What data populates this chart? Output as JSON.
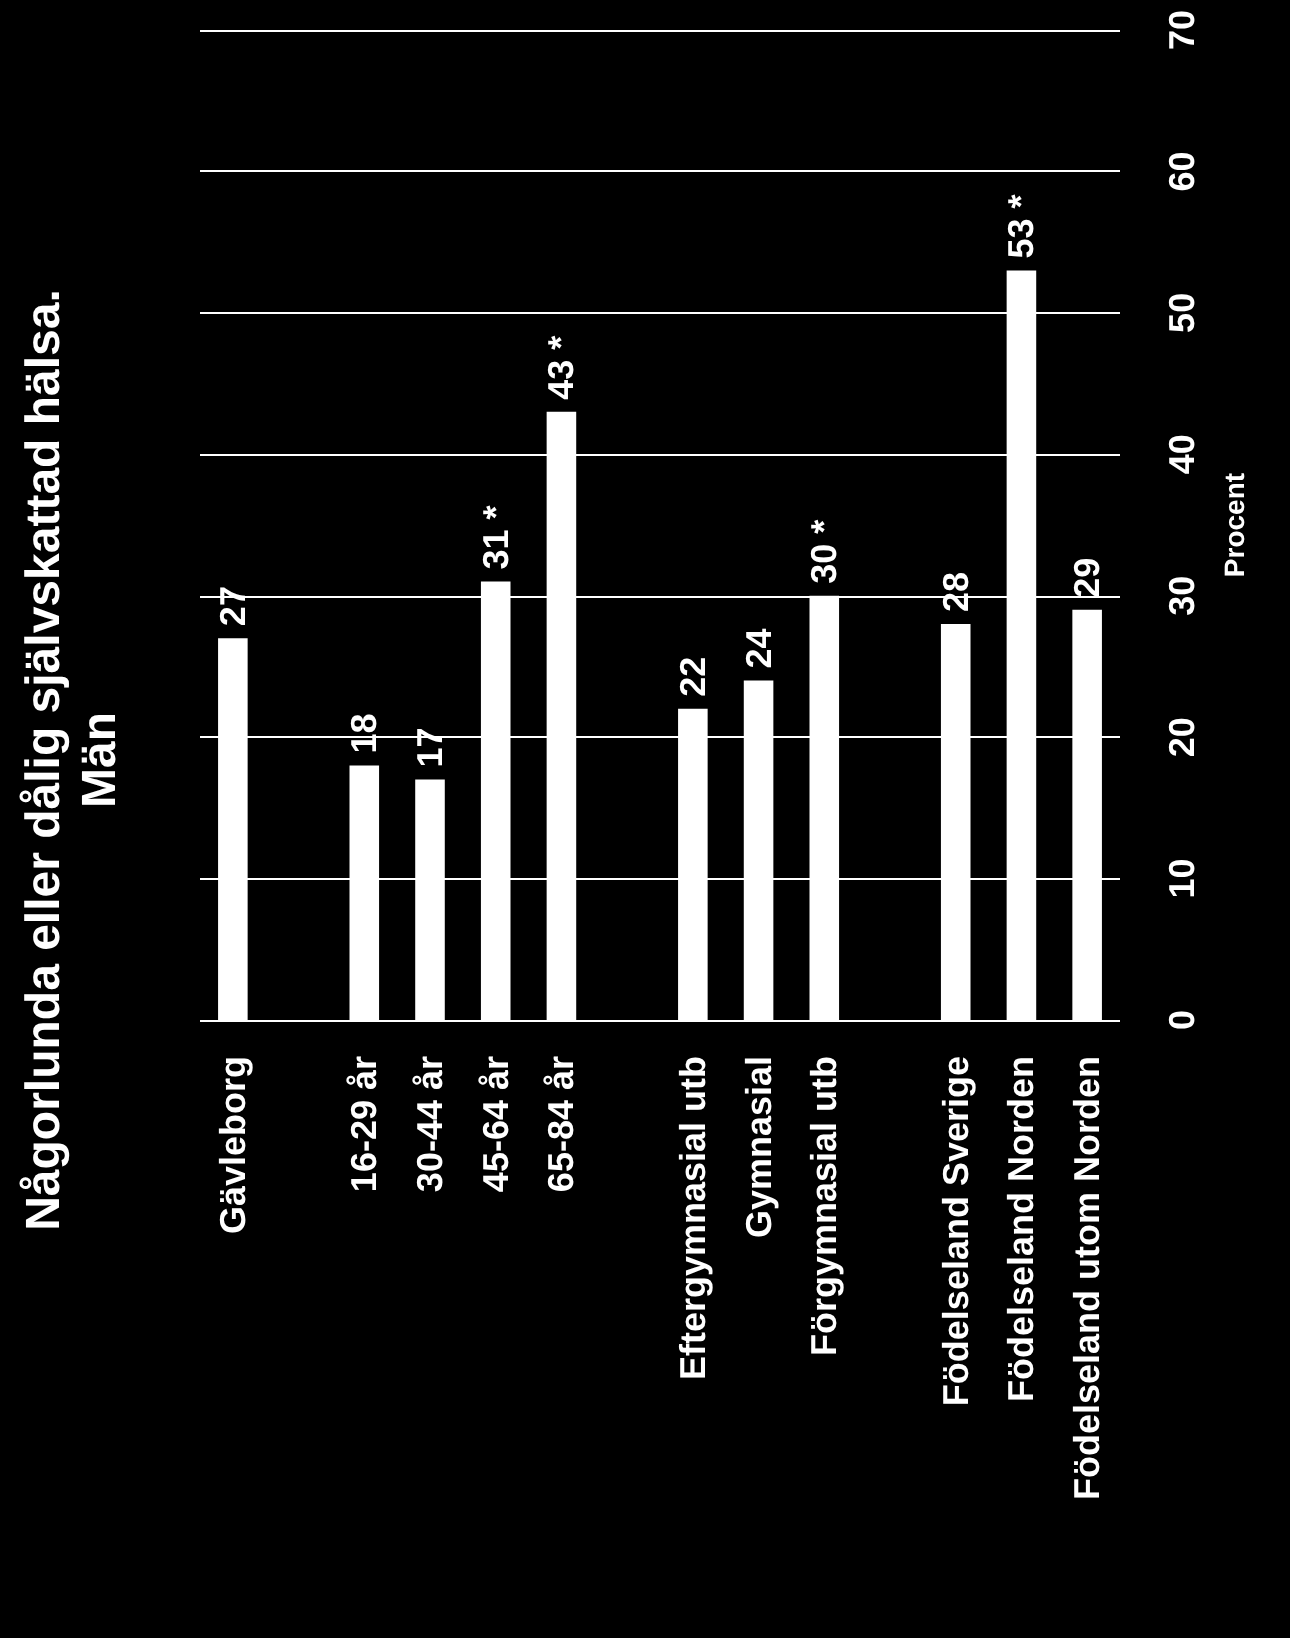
{
  "chart_data": {
    "type": "bar",
    "title": "Någorlunda eller dålig självskattad hälsa.\nMän",
    "ylabel": "Procent",
    "categories": [
      "Gävleborg",
      null,
      "16-29 år",
      "30-44 år",
      "45-64 år",
      "65-84 år",
      null,
      "Eftergymnasial utb",
      "Gymnasial",
      "Förgymnasial utb",
      null,
      "Födelseland Sverige",
      "Födelseland Norden",
      "Födelseland utom Norden"
    ],
    "values": [
      27,
      null,
      18,
      17,
      31,
      43,
      null,
      22,
      24,
      30,
      null,
      28,
      53,
      29
    ],
    "value_labels": [
      "27",
      null,
      "18",
      "17",
      "31 *",
      "43 *",
      null,
      "22",
      "24",
      "30 *",
      null,
      "28",
      "53 *",
      "29"
    ],
    "color": "#ffffff",
    "ylim": [
      0,
      70
    ],
    "yticks": [
      0,
      10,
      20,
      30,
      40,
      50,
      60,
      70
    ],
    "grid": "y"
  }
}
